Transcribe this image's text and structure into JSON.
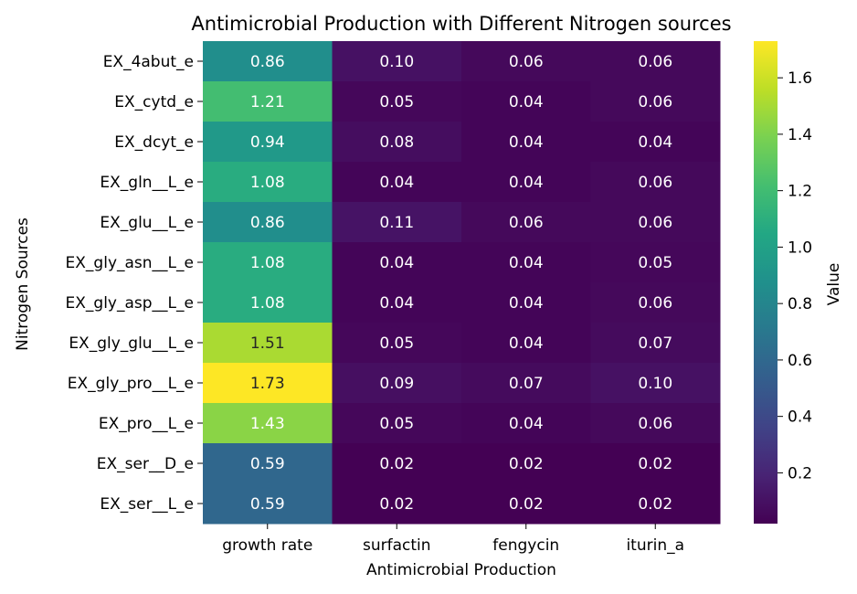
{
  "chart_data": {
    "type": "heatmap",
    "title": "Antimicrobial Production with Different Nitrogen sources",
    "xlabel": "Antimicrobial Production",
    "ylabel": "Nitrogen Sources",
    "columns": [
      "growth rate",
      "surfactin",
      "fengycin",
      "iturin_a"
    ],
    "rows": [
      "EX_4abut_e",
      "EX_cytd_e",
      "EX_dcyt_e",
      "EX_gln__L_e",
      "EX_glu__L_e",
      "EX_gly_asn__L_e",
      "EX_gly_asp__L_e",
      "EX_gly_glu__L_e",
      "EX_gly_pro__L_e",
      "EX_pro__L_e",
      "EX_ser__D_e",
      "EX_ser__L_e"
    ],
    "values": [
      [
        0.86,
        0.1,
        0.06,
        0.06
      ],
      [
        1.21,
        0.05,
        0.04,
        0.06
      ],
      [
        0.94,
        0.08,
        0.04,
        0.04
      ],
      [
        1.08,
        0.04,
        0.04,
        0.06
      ],
      [
        0.86,
        0.11,
        0.06,
        0.06
      ],
      [
        1.08,
        0.04,
        0.04,
        0.05
      ],
      [
        1.08,
        0.04,
        0.04,
        0.06
      ],
      [
        1.51,
        0.05,
        0.04,
        0.07
      ],
      [
        1.73,
        0.09,
        0.07,
        0.1
      ],
      [
        1.43,
        0.05,
        0.04,
        0.06
      ],
      [
        0.59,
        0.02,
        0.02,
        0.02
      ],
      [
        0.59,
        0.02,
        0.02,
        0.02
      ]
    ],
    "value_labels": [
      [
        "0.86",
        "0.10",
        "0.06",
        "0.06"
      ],
      [
        "1.21",
        "0.05",
        "0.04",
        "0.06"
      ],
      [
        "0.94",
        "0.08",
        "0.04",
        "0.04"
      ],
      [
        "1.08",
        "0.04",
        "0.04",
        "0.06"
      ],
      [
        "0.86",
        "0.11",
        "0.06",
        "0.06"
      ],
      [
        "1.08",
        "0.04",
        "0.04",
        "0.05"
      ],
      [
        "1.08",
        "0.04",
        "0.04",
        "0.06"
      ],
      [
        "1.51",
        "0.05",
        "0.04",
        "0.07"
      ],
      [
        "1.73",
        "0.09",
        "0.07",
        "0.10"
      ],
      [
        "1.43",
        "0.05",
        "0.04",
        "0.06"
      ],
      [
        "0.59",
        "0.02",
        "0.02",
        "0.02"
      ],
      [
        "0.59",
        "0.02",
        "0.02",
        "0.02"
      ]
    ],
    "colormap": "viridis",
    "color_range": [
      0.02,
      1.73
    ],
    "colorbar": {
      "label": "Value",
      "ticks": [
        0.2,
        0.4,
        0.6,
        0.8,
        1.0,
        1.2,
        1.4,
        1.6
      ],
      "tick_labels": [
        "0.2",
        "0.4",
        "0.6",
        "0.8",
        "1.0",
        "1.2",
        "1.4",
        "1.6"
      ]
    },
    "grid": false
  }
}
